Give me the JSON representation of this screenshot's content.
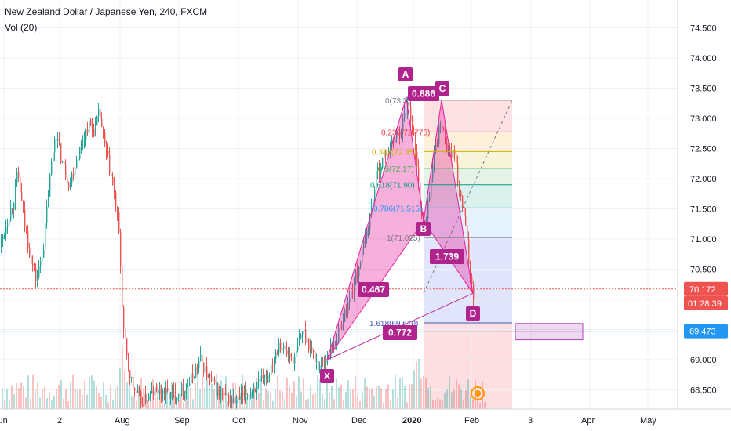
{
  "header": {
    "title": "New Zealand Dollar / Japanese Yen, 240, FXCM",
    "indicator": "Vol (20)"
  },
  "chart_data": {
    "type": "candlestick",
    "ylim": [
      68.2,
      74.9
    ],
    "yticks": [
      68.5,
      69.0,
      69.5,
      70.0,
      70.5,
      71.0,
      71.5,
      72.0,
      72.5,
      73.0,
      73.5,
      74.0,
      74.5
    ],
    "ytick_labels": [
      "68.500",
      "69.000",
      "",
      "70.000",
      "70.500",
      "71.000",
      "71.500",
      "72.000",
      "72.500",
      "73.000",
      "73.500",
      "74.000",
      "74.500"
    ],
    "xticks": [
      "Jun",
      "2",
      "Aug",
      "Sep",
      "Oct",
      "Nov",
      "Dec",
      "2020",
      "Feb",
      "3",
      "Apr",
      "May"
    ],
    "price_path": [
      [
        0,
        70.9
      ],
      [
        6,
        71.2
      ],
      [
        16,
        71.6
      ],
      [
        22,
        72.1
      ],
      [
        30,
        71.3
      ],
      [
        40,
        70.6
      ],
      [
        46,
        70.3
      ],
      [
        55,
        70.9
      ],
      [
        62,
        71.9
      ],
      [
        70,
        72.8
      ],
      [
        78,
        72.3
      ],
      [
        88,
        71.9
      ],
      [
        96,
        72.3
      ],
      [
        104,
        72.6
      ],
      [
        112,
        72.9
      ],
      [
        120,
        72.8
      ],
      [
        126,
        73.1
      ],
      [
        132,
        72.6
      ],
      [
        140,
        72.1
      ],
      [
        148,
        71.5
      ],
      [
        152,
        70.9
      ],
      [
        156,
        69.6
      ],
      [
        162,
        68.9
      ],
      [
        170,
        68.5
      ],
      [
        180,
        68.3
      ],
      [
        200,
        68.5
      ],
      [
        220,
        68.4
      ],
      [
        240,
        68.6
      ],
      [
        255,
        69.0
      ],
      [
        265,
        68.7
      ],
      [
        280,
        68.4
      ],
      [
        300,
        68.3
      ],
      [
        320,
        68.5
      ],
      [
        340,
        68.7
      ],
      [
        355,
        69.3
      ],
      [
        365,
        69.1
      ],
      [
        375,
        69.0
      ],
      [
        385,
        69.5
      ],
      [
        395,
        69.2
      ],
      [
        405,
        68.9
      ],
      [
        415,
        69.0
      ],
      [
        430,
        69.4
      ],
      [
        445,
        70.0
      ],
      [
        458,
        70.6
      ],
      [
        470,
        71.3
      ],
      [
        480,
        72.1
      ],
      [
        490,
        72.4
      ],
      [
        500,
        72.6
      ],
      [
        510,
        72.8
      ],
      [
        520,
        73.3
      ],
      [
        528,
        72.6
      ],
      [
        535,
        71.6
      ],
      [
        541,
        71.1
      ],
      [
        548,
        71.9
      ],
      [
        555,
        72.6
      ],
      [
        562,
        72.9
      ],
      [
        570,
        72.5
      ],
      [
        578,
        72.4
      ],
      [
        585,
        71.8
      ],
      [
        592,
        71.3
      ],
      [
        598,
        70.5
      ],
      [
        603,
        70.1
      ]
    ],
    "harmonic_pattern": {
      "points": [
        {
          "label": "X",
          "x": 417,
          "price": 69.0
        },
        {
          "label": "A",
          "x": 518,
          "price": 73.35
        },
        {
          "label": "B",
          "x": 540,
          "price": 71.3
        },
        {
          "label": "C",
          "x": 563,
          "price": 73.3
        },
        {
          "label": "D",
          "x": 603,
          "price": 70.1
        }
      ],
      "ratios": [
        "0.467",
        "0.886",
        "1.739",
        "0.772"
      ]
    },
    "fibonacci_levels": [
      {
        "label": "0(73.3)",
        "price": 73.3,
        "color": "#787b86"
      },
      {
        "label": "0.236(72.775)",
        "price": 72.775,
        "color": "#f23645"
      },
      {
        "label": "0.382(72.45)",
        "price": 72.45,
        "color": "#c8b400"
      },
      {
        "label": "0.5(72.17)",
        "price": 72.17,
        "color": "#4caf50"
      },
      {
        "label": "0.618(71.90)",
        "price": 71.9,
        "color": "#089981"
      },
      {
        "label": "0.786(71.515)",
        "price": 71.515,
        "color": "#2196f3"
      },
      {
        "label": "1(71.025)",
        "price": 71.025,
        "color": "#787b86"
      },
      {
        "label": "1.618(69.610)",
        "price": 69.61,
        "color": "#3f51b5"
      }
    ],
    "current_price": "70.172",
    "countdown": "01:28:39",
    "horizontal_line_price": "69.473",
    "colors": {
      "up": "#26a69a",
      "down": "#ef5350",
      "pattern_fill": "#e91e9b",
      "label_bg": "#b0228c",
      "hline": "#2196f3",
      "price_tag": "#ef5350",
      "hline_tag": "#2196f3"
    }
  }
}
